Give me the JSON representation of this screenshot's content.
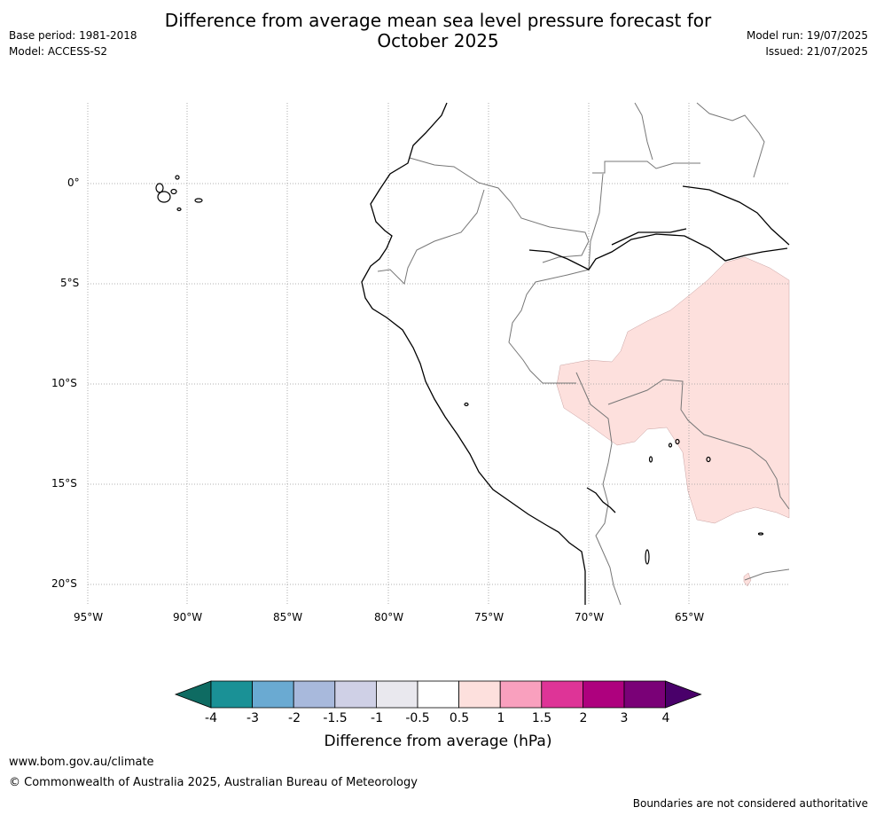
{
  "header": {
    "title_line1": "Difference from average mean sea level pressure forecast for",
    "title_line2": "October 2025",
    "base_period": "Base period: 1981-2018",
    "model": "Model: ACCESS-S2",
    "model_run": "Model run: 19/07/2025",
    "issued": "Issued: 21/07/2025"
  },
  "map": {
    "lat_labels": [
      "0°",
      "5°S",
      "10°S",
      "15°S",
      "20°S"
    ],
    "lon_labels": [
      "95°W",
      "90°W",
      "85°W",
      "80°W",
      "75°W",
      "70°W",
      "65°W"
    ],
    "anomaly_fill_color": "#fde0dd",
    "anomaly_class": "0.5 to 1 hPa"
  },
  "colorbar": {
    "title": "Difference from average (hPa)",
    "ticks": [
      "-4",
      "-3",
      "-2",
      "-1.5",
      "-1",
      "-0.5",
      "0.5",
      "1",
      "1.5",
      "2",
      "3",
      "4"
    ],
    "colors": [
      "#0e6b62",
      "#1a9196",
      "#6aaad2",
      "#a8b9dc",
      "#cfd0e6",
      "#e9e8ee",
      "#ffffff",
      "#fde0dd",
      "#f9a0be",
      "#de3497",
      "#ae017e",
      "#7a0177",
      "#49006a"
    ]
  },
  "footer": {
    "website": "www.bom.gov.au/climate",
    "copyright": "© Commonwealth of Australia 2025, Australian Bureau of Meteorology",
    "disclaimer": "Boundaries are not considered authoritative"
  }
}
